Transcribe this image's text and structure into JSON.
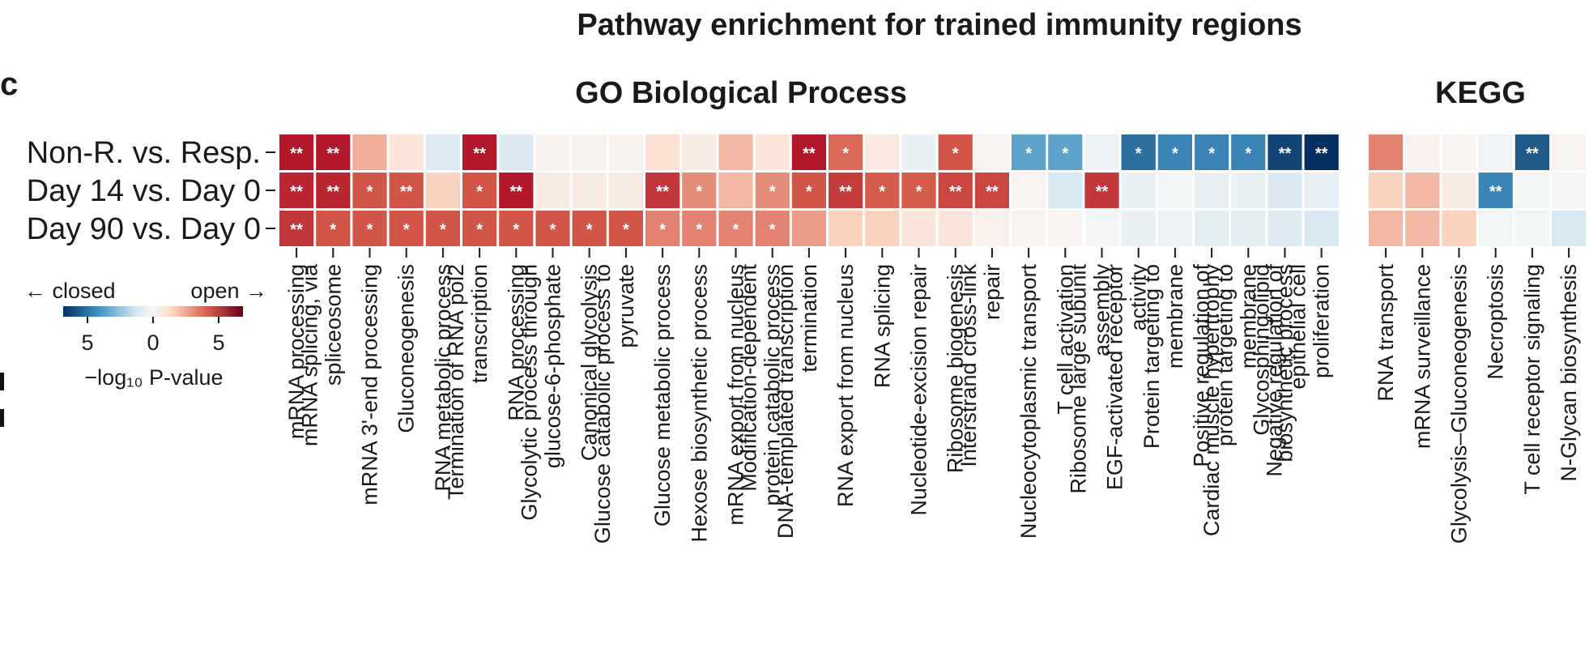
{
  "panel_label": "c",
  "chart_data": {
    "type": "heatmap",
    "title": "Pathway enrichment for trained immunity regions",
    "rows": [
      "Non-R. vs. Resp.",
      "Day 14 vs. Day 0",
      "Day 90 vs. Day 0"
    ],
    "groups": [
      {
        "name": "GO Biological Process",
        "columns": [
          "mRNA processing",
          "mRNA splicing, via spliceosome",
          "mRNA 3'-end processing",
          "Gluconeogenesis",
          "RNA metabolic process",
          "Termination of RNA pol2 transcription",
          "RNA processing",
          "Glycolytic process through glucose-6-phosphate",
          "Canonical glycolysis",
          "Glucose catabolic process to pyruvate",
          "Glucose metabolic process",
          "Hexose biosynthetic process",
          "mRNA export from nucleus",
          "Modification-dependent protein catabolic process",
          "DNA-templated transcription termination",
          "RNA export from nucleus",
          "RNA splicing",
          "Nucleotide-excision repair",
          "Ribosome biogenesis",
          "Interstrand cross-link repair",
          "Nucleocytoplasmic transport",
          "T cell activation",
          "Ribosome large subunit assembly",
          "EGF-activated receptor activity",
          "Protein targeting to membrane",
          "Cardiac muscle hypertrophy",
          "Positive regulation of protein targeting to membrane",
          "Glycosphingolipid biosynthetic process",
          "Negative regulation of epithelial cell proliferation"
        ],
        "values": [
          [
            7,
            7,
            3.2,
            1.5,
            -1.5,
            7,
            -1.8,
            0.4,
            0.4,
            0.4,
            1.8,
            1,
            3,
            1.5,
            7,
            4.5,
            1.2,
            -0.8,
            5,
            0.3,
            -4.2,
            -4.2,
            -0.6,
            -5.5,
            -5,
            -5,
            -5,
            -6.5,
            -7
          ],
          [
            6.5,
            6.5,
            5,
            5,
            2.5,
            5,
            7,
            1,
            1,
            1,
            6,
            3.8,
            3,
            3.8,
            5,
            5.8,
            4.8,
            4.8,
            5.5,
            5.5,
            0.3,
            -2,
            6,
            -0.8,
            -0.3,
            -1,
            -0.8,
            -1.8,
            -1
          ],
          [
            6,
            5,
            5,
            5,
            5,
            5,
            5,
            5,
            5,
            5,
            4,
            4,
            4,
            4,
            3.5,
            2.5,
            2.5,
            1.5,
            1.5,
            0.6,
            0.3,
            0.3,
            -0.2,
            -0.8,
            -0.6,
            -1.2,
            -1.2,
            -1.5,
            -2
          ]
        ],
        "stars": [
          [
            "**",
            "**",
            "",
            "",
            "",
            "**",
            "",
            "",
            "",
            "",
            "",
            "",
            "",
            "",
            "**",
            "*",
            "",
            "",
            "*",
            "",
            "*",
            "*",
            "",
            "*",
            "*",
            "*",
            "*",
            "**",
            "**"
          ],
          [
            "**",
            "**",
            "*",
            "**",
            "",
            "*",
            "**",
            "",
            "",
            "",
            "**",
            "*",
            "",
            "*",
            "*",
            "**",
            "*",
            "*",
            "**",
            "**",
            "",
            "",
            "**",
            "",
            "",
            "",
            "",
            "",
            ""
          ],
          [
            "**",
            "*",
            "*",
            "*",
            "*",
            "*",
            "*",
            "*",
            "*",
            "*",
            "*",
            "*",
            "*",
            "*",
            "",
            "",
            "",
            "",
            "",
            "",
            "",
            "",
            "",
            "",
            "",
            "",
            "",
            "",
            ""
          ]
        ]
      },
      {
        "name": "KEGG",
        "columns": [
          "RNA transport",
          "mRNA surveillance",
          "Glycolysis–Gluconeogenesis",
          "Necroptosis",
          "T cell receptor signaling",
          "N-Glycan biosynthesis"
        ],
        "values": [
          [
            4,
            0.5,
            0.3,
            -0.5,
            -6,
            0.3
          ],
          [
            2.5,
            3,
            1,
            -5,
            -0.3,
            -0.2
          ],
          [
            3,
            3,
            2.5,
            -0.3,
            -0.3,
            -2
          ]
        ],
        "stars": [
          [
            "",
            "",
            "",
            "",
            "**",
            ""
          ],
          [
            "",
            "",
            "",
            "**",
            "",
            ""
          ],
          [
            "",
            "",
            "",
            "",
            "",
            ""
          ]
        ]
      }
    ],
    "colorbar": {
      "left_label": "← closed",
      "right_label": "open →",
      "ticks": [
        "5",
        "0",
        "5"
      ],
      "label": "−log₁₀ P-value",
      "range": [
        -7,
        7
      ],
      "colors": {
        "neg_strong": "#053061",
        "neg_mid": "#4393c3",
        "neg_light": "#d1e5f0",
        "neutral": "#f7f7f7",
        "pos_light": "#fddbc7",
        "pos_mid": "#d6604d",
        "pos_strong": "#b2182b"
      }
    }
  }
}
